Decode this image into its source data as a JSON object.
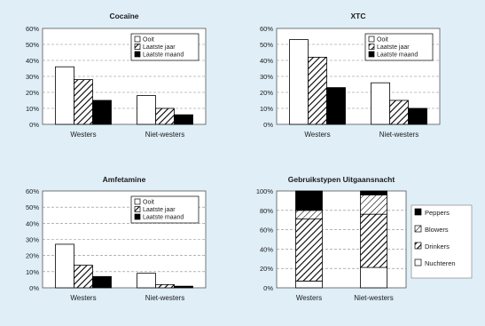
{
  "chart_data": [
    {
      "type": "bar",
      "title": "Cocaïne",
      "categories": [
        "Westers",
        "Niet-westers"
      ],
      "ylim": [
        0,
        60
      ],
      "yticks": [
        "0%",
        "10%",
        "20%",
        "30%",
        "40%",
        "50%",
        "60%"
      ],
      "grid": true,
      "legend_position": "top-right",
      "series": [
        {
          "name": "Ooit",
          "values": [
            36,
            18
          ]
        },
        {
          "name": "Laatste jaar",
          "values": [
            28,
            10
          ]
        },
        {
          "name": "Laatste maand",
          "values": [
            15,
            6
          ]
        }
      ]
    },
    {
      "type": "bar",
      "title": "XTC",
      "categories": [
        "Westers",
        "Niet-westers"
      ],
      "ylim": [
        0,
        60
      ],
      "yticks": [
        "0%",
        "10%",
        "20%",
        "30%",
        "40%",
        "50%",
        "60%"
      ],
      "grid": true,
      "legend_position": "top-right",
      "series": [
        {
          "name": "Ooit",
          "values": [
            53,
            26
          ]
        },
        {
          "name": "Laatste jaar",
          "values": [
            42,
            15
          ]
        },
        {
          "name": "Laatste maand",
          "values": [
            23,
            10
          ]
        }
      ]
    },
    {
      "type": "bar",
      "title": "Amfetamine",
      "categories": [
        "Westers",
        "Niet-westers"
      ],
      "ylim": [
        0,
        60
      ],
      "yticks": [
        "0%",
        "10%",
        "20%",
        "30%",
        "40%",
        "50%",
        "60%"
      ],
      "grid": true,
      "legend_position": "top-right",
      "series": [
        {
          "name": "Ooit",
          "values": [
            27,
            9
          ]
        },
        {
          "name": "Laatste jaar",
          "values": [
            14,
            2
          ]
        },
        {
          "name": "Laatste maand",
          "values": [
            7,
            1
          ]
        }
      ]
    },
    {
      "type": "bar",
      "stacked": true,
      "title": "Gebruikstypen Uitgaansnacht",
      "categories": [
        "Westers",
        "Niet-westers"
      ],
      "ylim": [
        0,
        100
      ],
      "yticks": [
        "0%",
        "20%",
        "40%",
        "60%",
        "80%",
        "100%"
      ],
      "grid": true,
      "legend_position": "right",
      "series": [
        {
          "name": "Nuchteren",
          "values": [
            7,
            21
          ]
        },
        {
          "name": "Drinkers",
          "values": [
            64,
            55
          ]
        },
        {
          "name": "Blowers",
          "values": [
            9,
            20
          ]
        },
        {
          "name": "Peppers",
          "values": [
            20,
            4
          ]
        }
      ]
    }
  ],
  "colors": {
    "background": "#dfeef7",
    "plot_area": "#ffffff",
    "bar_outline": "#000000",
    "series_ooit": "#ffffff",
    "series_laatste_jaar": "hatched",
    "series_laatste_maand": "#000000",
    "series_nuchteren": "#ffffff",
    "series_drinkers": "hatched",
    "series_blowers": "hatched-light",
    "series_peppers": "#000000"
  }
}
